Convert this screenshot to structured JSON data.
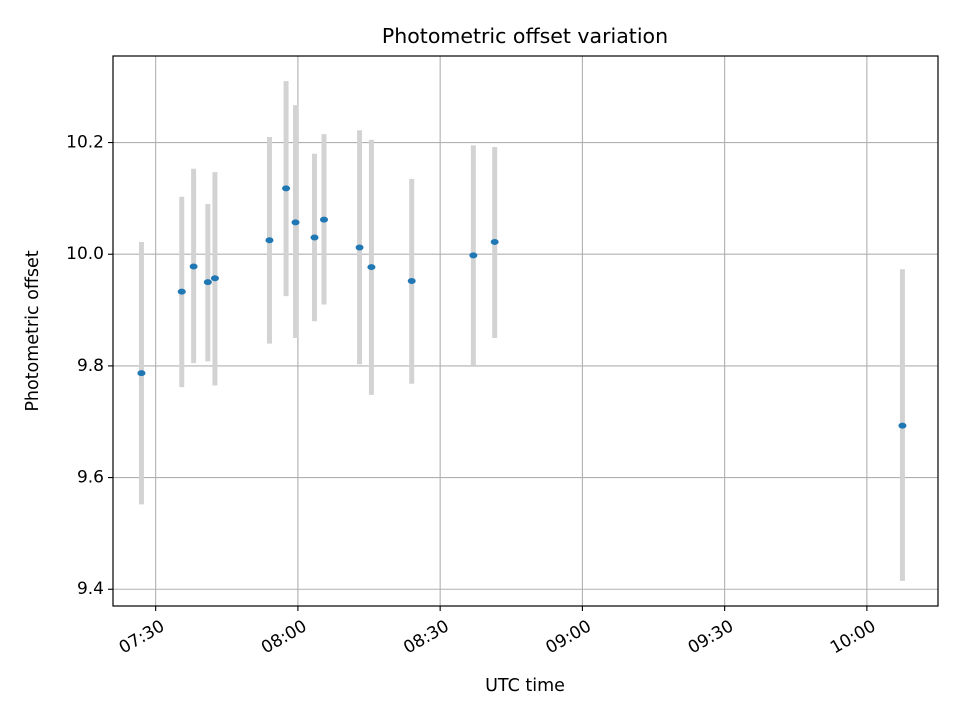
{
  "chart_data": {
    "type": "scatter",
    "title": "Photometric offset variation",
    "xlabel": "UTC time",
    "ylabel": "Photometric offset",
    "xlim": [
      "07:21",
      "10:15"
    ],
    "ylim": [
      9.37,
      10.355
    ],
    "x_ticks": [
      "07:30",
      "08:00",
      "08:30",
      "09:00",
      "09:30",
      "10:00"
    ],
    "y_ticks": [
      9.4,
      9.6,
      9.8,
      10.0,
      10.2
    ],
    "grid": true,
    "colors": {
      "marker": "#1f77b4",
      "errorbar": "#d3d3d3",
      "grid": "#b0b0b0"
    },
    "points": [
      {
        "time": "07:27",
        "value": 9.787,
        "err_low": 9.552,
        "err_high": 10.022
      },
      {
        "time": "07:35:30",
        "value": 9.933,
        "err_low": 9.762,
        "err_high": 10.103
      },
      {
        "time": "07:38",
        "value": 9.978,
        "err_low": 9.805,
        "err_high": 10.153
      },
      {
        "time": "07:41",
        "value": 9.95,
        "err_low": 9.808,
        "err_high": 10.09
      },
      {
        "time": "07:42:30",
        "value": 9.957,
        "err_low": 9.765,
        "err_high": 10.147
      },
      {
        "time": "07:54",
        "value": 10.025,
        "err_low": 9.84,
        "err_high": 10.21
      },
      {
        "time": "07:57:30",
        "value": 10.118,
        "err_low": 9.925,
        "err_high": 10.31
      },
      {
        "time": "07:59:30",
        "value": 10.057,
        "err_low": 9.85,
        "err_high": 10.267
      },
      {
        "time": "08:03:30",
        "value": 10.03,
        "err_low": 9.88,
        "err_high": 10.18
      },
      {
        "time": "08:05:30",
        "value": 10.062,
        "err_low": 9.91,
        "err_high": 10.215
      },
      {
        "time": "08:13",
        "value": 10.012,
        "err_low": 9.803,
        "err_high": 10.222
      },
      {
        "time": "08:15:30",
        "value": 9.977,
        "err_low": 9.748,
        "err_high": 10.205
      },
      {
        "time": "08:24",
        "value": 9.952,
        "err_low": 9.768,
        "err_high": 10.135
      },
      {
        "time": "08:37",
        "value": 9.998,
        "err_low": 9.8,
        "err_high": 10.195
      },
      {
        "time": "08:41:30",
        "value": 10.022,
        "err_low": 9.85,
        "err_high": 10.192
      },
      {
        "time": "10:07:30",
        "value": 9.693,
        "err_low": 9.415,
        "err_high": 9.973
      }
    ]
  }
}
